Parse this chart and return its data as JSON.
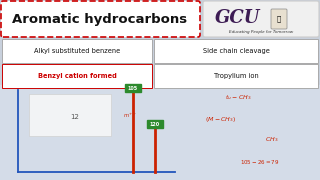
{
  "title": "Aromatic hydrocarbons",
  "title_fontsize": 9.5,
  "title_bg": "#ffffff",
  "title_border": "#cc0000",
  "gcu_text": "GCU",
  "gcu_subtitle": "Educating People for Tomorrow",
  "gcu_bg": "#f0f0f0",
  "bg_color": "#c8d0dc",
  "box1_text": "Alkyl substituted benzene",
  "box2_text": "Side chain cleavage",
  "box3_text": "Benzyl cation formed",
  "box3_color": "#cc0000",
  "box4_text": "Tropylium ion",
  "box_bg": "#ffffff",
  "box_border": "#aaaaaa",
  "bar1_label": "105",
  "bar2_label": "120",
  "bar_color": "#cc2200",
  "bar_label_bg": "#2d8a2d",
  "axes_color": "#2255bb",
  "text_color_red": "#cc2200"
}
